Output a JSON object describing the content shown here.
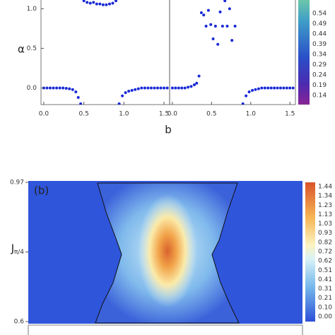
{
  "chart_data": [
    {
      "type": "scatter",
      "ylabel": "α",
      "xlabel": "b",
      "color": "#1a2ad6",
      "xlim": [
        -0.035,
        1.57
      ],
      "ylim": [
        -0.21,
        1.11
      ],
      "xticks": [
        {
          "value": 0,
          "label": "0.0"
        },
        {
          "value": 0.5,
          "label": "0.5"
        },
        {
          "value": 1,
          "label": "1.0"
        },
        {
          "value": 1.5,
          "label": "1.5"
        }
      ],
      "yticks": [
        {
          "value": 0,
          "label": "0.0"
        },
        {
          "value": 0.5,
          "label": "0.5"
        },
        {
          "value": 1,
          "label": "1.0"
        }
      ],
      "x": [
        0,
        0.04,
        0.08,
        0.12,
        0.16,
        0.2,
        0.24,
        0.28,
        0.32,
        0.36,
        0.4,
        0.43,
        0.46,
        0.5,
        0.54,
        0.58,
        0.62,
        0.66,
        0.7,
        0.74,
        0.78,
        0.82,
        0.86,
        0.9,
        0.94,
        0.98,
        1.02,
        1.06,
        1.1,
        1.14,
        1.18,
        1.22,
        1.26,
        1.3,
        1.34,
        1.38,
        1.42,
        1.46,
        1.5,
        1.54
      ],
      "values": [
        0,
        0,
        0,
        0,
        0,
        0,
        0,
        -0.005,
        -0.01,
        -0.02,
        -0.05,
        -0.12,
        -0.2,
        1.1,
        1.08,
        1.07,
        1.08,
        1.06,
        1.06,
        1.05,
        1.05,
        1.06,
        1.07,
        1.1,
        -0.2,
        -0.1,
        -0.06,
        -0.04,
        -0.03,
        -0.02,
        -0.01,
        0,
        0,
        0,
        0,
        0,
        0,
        0,
        0,
        0
      ]
    },
    {
      "type": "scatter",
      "color": "#1a2ad6",
      "xlim": [
        -0.035,
        1.57
      ],
      "ylim": [
        -0.21,
        1.11
      ],
      "xticks": [
        {
          "value": 0,
          "label": "0.0"
        },
        {
          "value": 0.5,
          "label": "0.5"
        },
        {
          "value": 1,
          "label": "1.0"
        },
        {
          "value": 1.5,
          "label": "1.5"
        }
      ],
      "x": [
        0,
        0.04,
        0.08,
        0.12,
        0.16,
        0.2,
        0.24,
        0.28,
        0.31,
        0.34,
        0.37,
        0.4,
        0.43,
        0.46,
        0.49,
        0.52,
        0.55,
        0.58,
        0.61,
        0.64,
        0.67,
        0.7,
        0.73,
        0.76,
        0.8,
        0.9,
        0.94,
        0.98,
        1.02,
        1.06,
        1.1,
        1.14,
        1.18,
        1.22,
        1.26,
        1.3,
        1.34,
        1.38,
        1.42,
        1.46,
        1.5,
        1.54
      ],
      "values": [
        0,
        0,
        0,
        0,
        0,
        0.01,
        0.02,
        0.04,
        0.06,
        0.15,
        0.95,
        0.92,
        0.78,
        0.98,
        0.8,
        0.62,
        0.78,
        0.55,
        0.96,
        0.78,
        1.1,
        0.78,
        1.0,
        0.6,
        0.78,
        -0.2,
        -0.1,
        -0.05,
        -0.03,
        -0.02,
        -0.01,
        0,
        0,
        0,
        0,
        0,
        0,
        0,
        0,
        0,
        0,
        0
      ],
      "colorbar_ticks": [
        0.54,
        0.49,
        0.44,
        0.39,
        0.34,
        0.29,
        0.24,
        0.19,
        0.14
      ]
    },
    {
      "type": "heatmap",
      "label": "(b)",
      "ylabel": "J",
      "ylim": [
        0.6,
        0.97
      ],
      "yticks": [
        {
          "value": 0.97,
          "label": "0.97"
        },
        {
          "value": 0.785,
          "label": "π/4"
        },
        {
          "value": 0.6,
          "label": "0.6"
        }
      ],
      "colorbar_ticks": [
        1.44,
        1.34,
        1.23,
        1.13,
        1.03,
        0.93,
        0.82,
        0.72,
        0.62,
        0.51,
        0.41,
        0.31,
        0.21,
        {
          "value": 0.1,
          "label": "0.10"
        },
        {
          "value": 0,
          "label": "0.00"
        }
      ]
    }
  ]
}
